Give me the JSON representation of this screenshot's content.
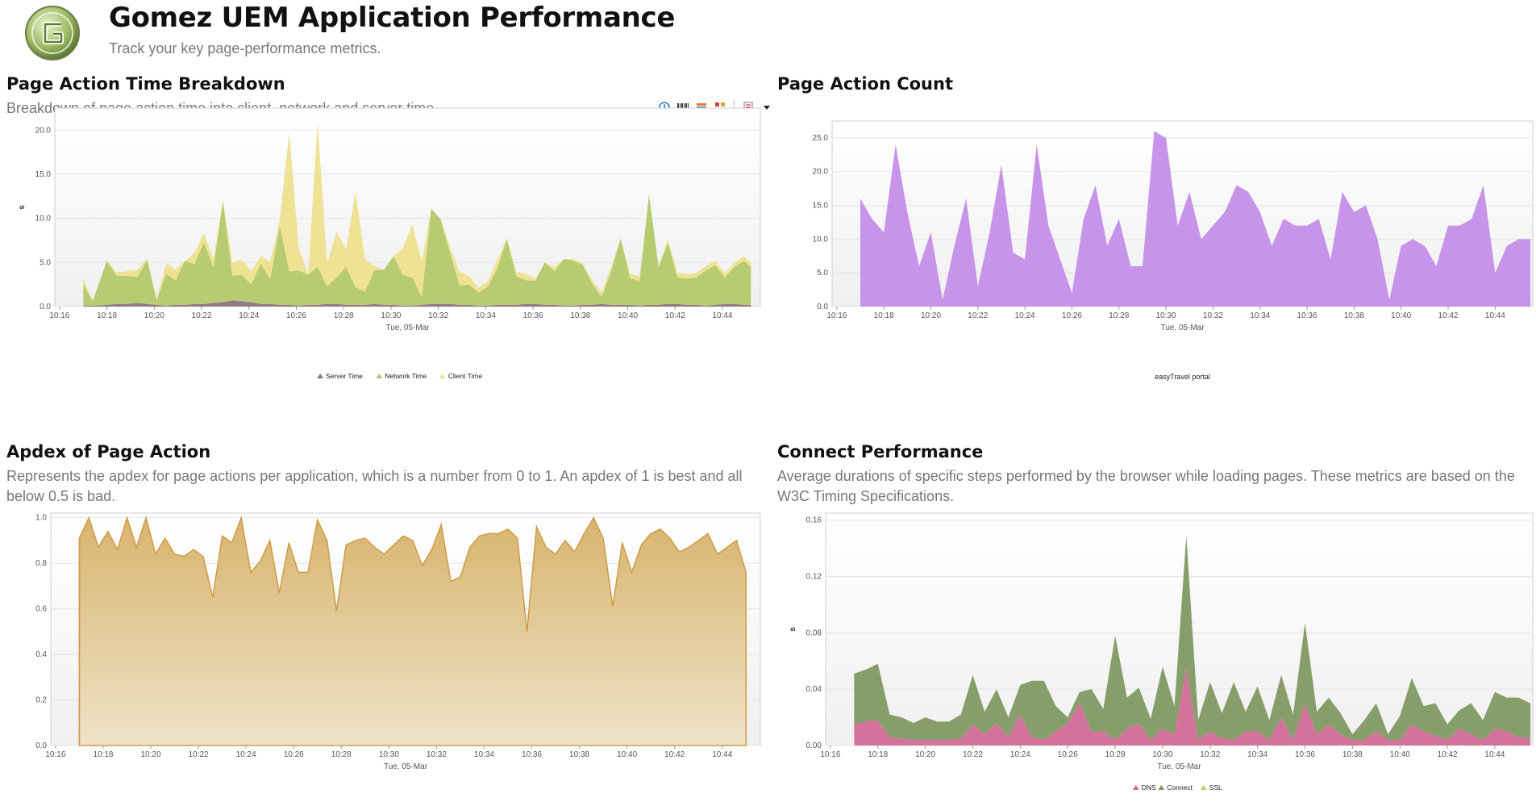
{
  "header": {
    "title": "Gomez UEM Application Performance",
    "subtitle": "Track your key page-performance metrics."
  },
  "colors": {
    "server": "#8e7380",
    "network": "#b3c96a",
    "client": "#efe08f",
    "count": "#c48ee9",
    "apdex": "#dcc083",
    "apdex_line": "#d09c46",
    "dns": "#d16b97",
    "connect": "#7f9a62",
    "ssl": "#b7d16a"
  },
  "toolbar": {
    "icons": [
      "clock-icon",
      "barcode-icon",
      "stack-chart-icon",
      "grid-chart-icon",
      "export-icon",
      "dropdown-arrow-icon"
    ]
  },
  "panels": [
    {
      "id": "p1",
      "title": "Page Action Time Breakdown",
      "description": "Breakdown of page action time into client, network and server time.",
      "chart_data": {
        "type": "area",
        "stacked": true,
        "xlabel": "Tue, 05-Mar",
        "ylabel": "s",
        "ylim": [
          0,
          22.5
        ],
        "yticks": [
          "0.0",
          "5.0",
          "10.0",
          "15.0",
          "20.0"
        ],
        "xticks": [
          "10:16",
          "10:18",
          "10:20",
          "10:22",
          "10:24",
          "10:26",
          "10:28",
          "10:30",
          "10:32",
          "10:34",
          "10:36",
          "10:38",
          "10:40",
          "10:42",
          "10:44"
        ],
        "x": [
          1.0,
          1.4,
          2.0,
          2.4,
          2.8,
          3.3,
          3.7,
          4.1,
          4.5,
          4.9,
          5.3,
          5.7,
          6.1,
          6.5,
          6.9,
          7.3,
          7.7,
          8.1,
          8.5,
          8.9,
          9.3,
          9.7,
          10.1,
          10.5,
          10.9,
          11.3,
          11.7,
          12.1,
          12.5,
          12.9,
          13.3,
          13.7,
          14.1,
          14.5,
          14.9,
          15.3,
          15.7,
          16.1,
          16.5,
          16.9,
          17.3,
          17.7,
          18.1,
          18.5,
          18.9,
          19.3,
          19.7,
          20.1,
          20.5,
          20.9,
          21.3,
          21.7,
          22.1,
          22.5,
          22.9,
          23.3,
          23.7,
          24.1,
          24.5,
          24.9,
          25.3,
          25.7,
          26.1,
          26.5,
          26.9,
          27.3,
          27.7,
          28.1,
          28.5,
          28.9,
          29.2
        ],
        "series": [
          {
            "name": "Server Time",
            "values": [
              0.1,
              0.1,
              0.2,
              0.3,
              0.3,
              0.4,
              0.3,
              0.2,
              0.1,
              0.2,
              0.2,
              0.3,
              0.3,
              0.4,
              0.5,
              0.7,
              0.6,
              0.5,
              0.3,
              0.3,
              0.2,
              0.2,
              0.1,
              0.2,
              0.2,
              0.3,
              0.3,
              0.2,
              0.2,
              0.2,
              0.3,
              0.2,
              0.2,
              0.1,
              0.1,
              0.2,
              0.3,
              0.3,
              0.3,
              0.2,
              0.2,
              0.1,
              0.1,
              0.2,
              0.2,
              0.2,
              0.3,
              0.3,
              0.2,
              0.2,
              0.1,
              0.1,
              0.2,
              0.2,
              0.3,
              0.2,
              0.2,
              0.2,
              0.1,
              0.2,
              0.2,
              0.3,
              0.3,
              0.2,
              0.2,
              0.1,
              0.2,
              0.3,
              0.3,
              0.2,
              0.2
            ]
          },
          {
            "name": "Network Time",
            "values": [
              2.4,
              0.5,
              5.0,
              3.2,
              3.2,
              3.0,
              5.0,
              0.5,
              3.6,
              2.8,
              5.0,
              4.5,
              7.0,
              4.0,
              11.5,
              2.8,
              3.0,
              2.0,
              4.6,
              2.8,
              9.0,
              3.8,
              4.0,
              3.4,
              4.3,
              2.0,
              3.0,
              4.3,
              2.0,
              1.5,
              3.8,
              4.0,
              5.5,
              3.5,
              3.2,
              0.9,
              10.8,
              9.6,
              5.7,
              2.2,
              2.3,
              1.5,
              2.2,
              4.2,
              7.5,
              3.2,
              2.7,
              2.6,
              4.8,
              3.8,
              5.3,
              5.1,
              4.5,
              2.4,
              0.8,
              3.8,
              7.5,
              3.0,
              2.8,
              12.5,
              4.3,
              6.9,
              3.0,
              3.0,
              3.1,
              4.0,
              4.5,
              3.0,
              4.2,
              5.0,
              4.3
            ]
          },
          {
            "name": "Client Time",
            "values": [
              0.7,
              0.1,
              0.0,
              0.4,
              0.5,
              0.8,
              0.2,
              0.1,
              1.2,
              1.2,
              0.0,
              1.3,
              1.0,
              1.0,
              0.0,
              1.5,
              1.7,
              1.5,
              0.8,
              2.0,
              0.6,
              15.7,
              2.6,
              0.0,
              16.4,
              2.5,
              5.2,
              2.0,
              10.8,
              3.7,
              0.5,
              0.0,
              0.0,
              3.0,
              6.0,
              4.0,
              0.0,
              0.0,
              0.7,
              1.5,
              1.0,
              0.5,
              0.6,
              1.0,
              0.0,
              0.5,
              0.7,
              0.3,
              0.0,
              0.5,
              0.0,
              0.2,
              0.2,
              0.4,
              0.5,
              0.5,
              0.0,
              0.5,
              0.5,
              0.0,
              0.0,
              0.5,
              0.5,
              0.5,
              0.5,
              0.5,
              0.5,
              0.5,
              0.5,
              0.5,
              0.5
            ]
          }
        ],
        "legend": "bottom"
      }
    },
    {
      "id": "p2",
      "title": "Page Action Count",
      "description": "",
      "chart_data": {
        "type": "area",
        "xlabel": "Tue, 05-Mar",
        "ylabel": "",
        "ylim": [
          0,
          27.5
        ],
        "yticks": [
          "0.0",
          "5.0",
          "10.0",
          "15.0",
          "20.0",
          "25.0"
        ],
        "xticks": [
          "10:16",
          "10:18",
          "10:20",
          "10:22",
          "10:24",
          "10:26",
          "10:28",
          "10:30",
          "10:32",
          "10:34",
          "10:36",
          "10:38",
          "10:40",
          "10:42",
          "10:44"
        ],
        "x": [
          1.0,
          1.5,
          2.0,
          2.5,
          3.0,
          3.5,
          4.0,
          4.5,
          5.0,
          5.5,
          6.0,
          6.5,
          7.0,
          7.5,
          8.0,
          8.5,
          9.0,
          9.5,
          10.0,
          10.5,
          11.0,
          11.5,
          12.0,
          12.5,
          13.0,
          13.5,
          14.0,
          14.5,
          15.0,
          15.5,
          16.0,
          16.5,
          17.0,
          17.5,
          18.0,
          18.5,
          19.0,
          19.5,
          20.0,
          20.5,
          21.0,
          21.5,
          22.0,
          22.5,
          23.0,
          23.5,
          24.0,
          24.5,
          25.0,
          25.5,
          26.0,
          26.5,
          27.0,
          27.5,
          28.0,
          28.5,
          29.0,
          29.5
        ],
        "series": [
          {
            "name": "easyTravel portal",
            "values": [
              16,
              13,
              11,
              24,
              14,
              6,
              11,
              1,
              9,
              16,
              3,
              11,
              21,
              8,
              7,
              24,
              12,
              7,
              2,
              13,
              18,
              9,
              13,
              6,
              6,
              26,
              25,
              12,
              17,
              10,
              12,
              14,
              18,
              17,
              14,
              9,
              13,
              12,
              12,
              13,
              7,
              17,
              14,
              15,
              10,
              1,
              9,
              10,
              9,
              6,
              12,
              12,
              13,
              18,
              5,
              9,
              10,
              10
            ]
          }
        ],
        "legend": "bottom"
      }
    },
    {
      "id": "p3",
      "title": "Apdex of Page Action",
      "description": "Represents the apdex for page actions per application, which is a number from 0  to 1. An apdex of 1 is best and all below 0.5 is bad.",
      "chart_data": {
        "type": "area",
        "xlabel": "Tue, 05-Mar",
        "ylabel": "",
        "ylim": [
          0,
          1.02
        ],
        "yticks": [
          "0.0",
          "0.2",
          "0.4",
          "0.6",
          "0.8",
          "1.0"
        ],
        "xticks": [
          "10:16",
          "10:18",
          "10:20",
          "10:22",
          "10:24",
          "10:26",
          "10:28",
          "10:30",
          "10:32",
          "10:34",
          "10:36",
          "10:38",
          "10:40",
          "10:42",
          "10:44"
        ],
        "x": [
          1.0,
          1.4,
          1.8,
          2.2,
          2.6,
          3.0,
          3.4,
          3.8,
          4.2,
          4.6,
          5.0,
          5.4,
          5.8,
          6.2,
          6.6,
          7.0,
          7.4,
          7.8,
          8.2,
          8.6,
          9.0,
          9.4,
          9.8,
          10.2,
          10.6,
          11.0,
          11.4,
          11.8,
          12.2,
          12.6,
          13.0,
          13.4,
          13.8,
          14.2,
          14.6,
          15.0,
          15.4,
          15.8,
          16.2,
          16.6,
          17.0,
          17.4,
          17.8,
          18.2,
          18.6,
          19.0,
          19.4,
          19.8,
          20.2,
          20.6,
          21.0,
          21.4,
          21.8,
          22.2,
          22.6,
          23.0,
          23.4,
          23.8,
          24.2,
          24.6,
          25.0,
          25.4,
          25.8,
          26.2,
          26.6,
          27.0,
          27.4,
          27.8,
          28.2,
          28.6,
          29.0
        ],
        "series": [
          {
            "name": "Apdex",
            "values": [
              0.91,
              1.0,
              0.87,
              0.94,
              0.86,
              1.0,
              0.87,
              1.0,
              0.84,
              0.91,
              0.84,
              0.83,
              0.86,
              0.83,
              0.65,
              0.92,
              0.89,
              1.0,
              0.76,
              0.81,
              0.9,
              0.67,
              0.89,
              0.76,
              0.76,
              0.99,
              0.9,
              0.59,
              0.88,
              0.9,
              0.91,
              0.87,
              0.84,
              0.88,
              0.92,
              0.9,
              0.79,
              0.86,
              0.97,
              0.72,
              0.74,
              0.87,
              0.92,
              0.93,
              0.93,
              0.95,
              0.91,
              0.5,
              0.96,
              0.87,
              0.84,
              0.9,
              0.85,
              0.93,
              1.0,
              0.91,
              0.61,
              0.89,
              0.76,
              0.88,
              0.93,
              0.95,
              0.91,
              0.85,
              0.87,
              0.9,
              0.93,
              0.84,
              0.87,
              0.9,
              0.76
            ]
          }
        ],
        "legend": "none"
      }
    },
    {
      "id": "p4",
      "title": "Connect Performance",
      "description": "Average durations of specific steps performed by the browser while loading pages. These metrics are based on the W3C Timing Specifications.",
      "chart_data": {
        "type": "area",
        "stacked": true,
        "xlabel": "Tue, 05-Mar",
        "ylabel": "s",
        "ylim": [
          0,
          0.165
        ],
        "yticks": [
          "0.00",
          "0.04",
          "0.08",
          "0.12",
          "0.16"
        ],
        "xticks": [
          "10:16",
          "10:18",
          "10:20",
          "10:22",
          "10:24",
          "10:26",
          "10:28",
          "10:30",
          "10:32",
          "10:34",
          "10:36",
          "10:38",
          "10:40",
          "10:42",
          "10:44"
        ],
        "x": [
          1.0,
          1.5,
          2.0,
          2.5,
          3.0,
          3.5,
          4.0,
          4.5,
          5.0,
          5.5,
          6.0,
          6.5,
          7.0,
          7.5,
          8.0,
          8.5,
          9.0,
          9.5,
          10.0,
          10.5,
          11.0,
          11.5,
          12.0,
          12.5,
          13.0,
          13.5,
          14.0,
          14.5,
          15.0,
          15.5,
          16.0,
          16.5,
          17.0,
          17.5,
          18.0,
          18.5,
          19.0,
          19.5,
          20.0,
          20.5,
          21.0,
          21.5,
          22.0,
          22.5,
          23.0,
          23.5,
          24.0,
          24.5,
          25.0,
          25.5,
          26.0,
          26.5,
          27.0,
          27.5,
          28.0,
          28.5,
          29.0,
          29.5
        ],
        "series": [
          {
            "name": "DNS",
            "values": [
              0.015,
              0.017,
              0.018,
              0.006,
              0.005,
              0.004,
              0.004,
              0.004,
              0.004,
              0.005,
              0.015,
              0.008,
              0.016,
              0.006,
              0.022,
              0.006,
              0.004,
              0.01,
              0.016,
              0.03,
              0.01,
              0.01,
              0.004,
              0.012,
              0.016,
              0.004,
              0.012,
              0.008,
              0.055,
              0.004,
              0.01,
              0.005,
              0.004,
              0.01,
              0.01,
              0.004,
              0.02,
              0.004,
              0.03,
              0.008,
              0.015,
              0.008,
              0.004,
              0.004,
              0.01,
              0.004,
              0.004,
              0.015,
              0.01,
              0.007,
              0.004,
              0.012,
              0.008,
              0.004,
              0.012,
              0.01,
              0.006,
              0.005
            ]
          },
          {
            "name": "Connect",
            "values": [
              0.036,
              0.037,
              0.04,
              0.016,
              0.015,
              0.012,
              0.016,
              0.013,
              0.013,
              0.017,
              0.035,
              0.016,
              0.024,
              0.014,
              0.021,
              0.04,
              0.042,
              0.018,
              0.004,
              0.008,
              0.03,
              0.016,
              0.074,
              0.022,
              0.025,
              0.015,
              0.044,
              0.02,
              0.094,
              0.014,
              0.035,
              0.018,
              0.041,
              0.014,
              0.032,
              0.014,
              0.03,
              0.018,
              0.057,
              0.016,
              0.019,
              0.015,
              0.004,
              0.014,
              0.02,
              0.004,
              0.017,
              0.033,
              0.018,
              0.023,
              0.011,
              0.013,
              0.022,
              0.014,
              0.026,
              0.024,
              0.028,
              0.025
            ]
          },
          {
            "name": "SSL",
            "values": [
              0.0,
              0.0,
              0.0,
              0.0,
              0.0,
              0.0,
              0.0,
              0.0,
              0.0,
              0.0,
              0.0,
              0.0,
              0.0,
              0.0,
              0.0,
              0.0,
              0.0,
              0.0,
              0.0,
              0.0,
              0.0,
              0.0,
              0.0,
              0.0,
              0.0,
              0.0,
              0.0,
              0.0,
              0.0,
              0.0,
              0.0,
              0.0,
              0.0,
              0.0,
              0.0,
              0.0,
              0.0,
              0.0,
              0.0,
              0.0,
              0.0,
              0.0,
              0.0,
              0.0,
              0.0,
              0.0,
              0.0,
              0.0,
              0.0,
              0.0,
              0.0,
              0.0,
              0.0,
              0.0,
              0.0,
              0.0,
              0.0,
              0.0
            ]
          }
        ],
        "legend": "bottom"
      }
    }
  ]
}
